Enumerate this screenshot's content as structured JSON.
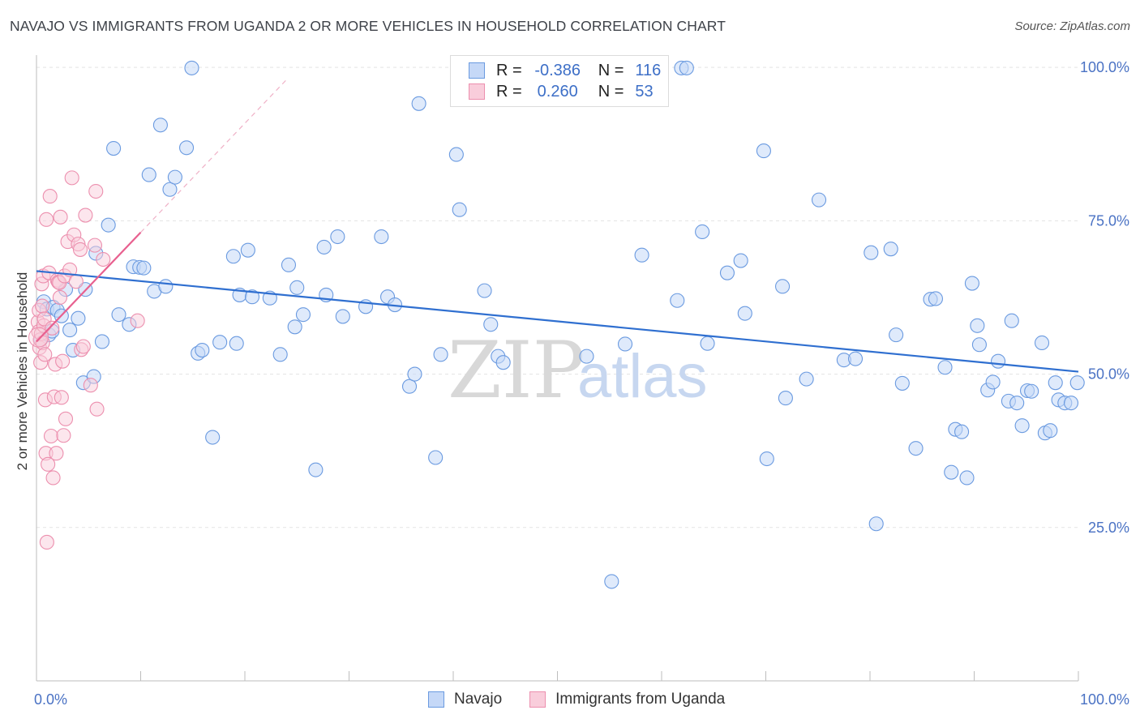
{
  "title": "NAVAJO VS IMMIGRANTS FROM UGANDA 2 OR MORE VEHICLES IN HOUSEHOLD CORRELATION CHART",
  "source": "Source: ZipAtlas.com",
  "watermark": {
    "zip": "ZIP",
    "atlas": "atlas"
  },
  "colors": {
    "navajo_fill": "#c5d8f7",
    "navajo_stroke": "#6a9ae0",
    "navajo_line": "#2f6fd0",
    "uganda_fill": "#f9cddb",
    "uganda_stroke": "#ec8fae",
    "uganda_line": "#e8608f",
    "grid": "#e3e3e3",
    "tick_label": "#4a72c4"
  },
  "legend": {
    "rows": [
      {
        "r_label": "R =",
        "r_value": "-0.386",
        "n_label": "N =",
        "n_value": "116"
      },
      {
        "r_label": "R =",
        "r_value": "0.260",
        "n_label": "N =",
        "n_value": "53"
      }
    ]
  },
  "bottom_legend": {
    "navajo": "Navajo",
    "uganda": "Immigrants from Uganda"
  },
  "chart_data": {
    "type": "scatter",
    "title": "NAVAJO VS IMMIGRANTS FROM UGANDA 2 OR MORE VEHICLES IN HOUSEHOLD CORRELATION CHART",
    "xlabel": "",
    "ylabel": "2 or more Vehicles in Household",
    "xlim": [
      0,
      100
    ],
    "ylim": [
      0,
      102
    ],
    "y_ticks": [
      {
        "value": 100,
        "label": "100.0%"
      },
      {
        "value": 75,
        "label": "75.0%"
      },
      {
        "value": 50,
        "label": "50.0%"
      },
      {
        "value": 25,
        "label": "25.0%"
      }
    ],
    "x_tick_labels": [
      {
        "value": 0,
        "label": "0.0%"
      },
      {
        "value": 100,
        "label": "100.0%"
      }
    ],
    "x_minor_ticks": [
      0,
      10,
      20,
      30,
      40,
      50,
      60,
      70,
      80,
      90,
      100
    ],
    "series": [
      {
        "name": "Navajo",
        "R": -0.386,
        "N": 116,
        "trend": {
          "x": [
            0,
            100
          ],
          "y": [
            66.8,
            50.4
          ]
        },
        "points": [
          [
            0.4,
            55.6
          ],
          [
            0.7,
            61.8
          ],
          [
            1.0,
            60.6
          ],
          [
            1.2,
            56.4
          ],
          [
            1.5,
            57.0
          ],
          [
            1.6,
            60.9
          ],
          [
            2.0,
            60.4
          ],
          [
            2.4,
            59.5
          ],
          [
            2.8,
            63.8
          ],
          [
            3.2,
            57.2
          ],
          [
            3.5,
            53.9
          ],
          [
            4.0,
            59.1
          ],
          [
            4.5,
            48.6
          ],
          [
            4.7,
            63.8
          ],
          [
            5.5,
            49.6
          ],
          [
            5.7,
            69.7
          ],
          [
            6.3,
            55.3
          ],
          [
            6.9,
            74.3
          ],
          [
            7.4,
            86.8
          ],
          [
            7.9,
            59.7
          ],
          [
            8.9,
            58.1
          ],
          [
            9.3,
            67.5
          ],
          [
            9.9,
            67.4
          ],
          [
            10.3,
            67.3
          ],
          [
            10.8,
            82.5
          ],
          [
            11.3,
            63.5
          ],
          [
            11.9,
            90.6
          ],
          [
            12.4,
            64.3
          ],
          [
            12.8,
            80.1
          ],
          [
            13.3,
            82.1
          ],
          [
            14.4,
            86.9
          ],
          [
            14.9,
            99.9
          ],
          [
            15.5,
            53.4
          ],
          [
            15.9,
            53.9
          ],
          [
            16.9,
            39.7
          ],
          [
            17.6,
            55.2
          ],
          [
            18.9,
            69.2
          ],
          [
            19.2,
            55.0
          ],
          [
            19.5,
            62.9
          ],
          [
            20.3,
            70.2
          ],
          [
            20.7,
            62.6
          ],
          [
            22.4,
            62.4
          ],
          [
            23.4,
            53.2
          ],
          [
            24.2,
            67.8
          ],
          [
            24.8,
            57.7
          ],
          [
            25.0,
            64.1
          ],
          [
            25.6,
            59.7
          ],
          [
            26.8,
            34.4
          ],
          [
            27.6,
            70.7
          ],
          [
            27.8,
            62.9
          ],
          [
            28.9,
            72.4
          ],
          [
            29.4,
            59.4
          ],
          [
            31.6,
            61.0
          ],
          [
            33.1,
            72.4
          ],
          [
            33.7,
            62.6
          ],
          [
            34.4,
            61.3
          ],
          [
            35.8,
            48.0
          ],
          [
            36.3,
            50.0
          ],
          [
            36.7,
            94.1
          ],
          [
            38.3,
            36.4
          ],
          [
            38.8,
            53.2
          ],
          [
            40.3,
            85.8
          ],
          [
            40.6,
            76.8
          ],
          [
            43.0,
            63.6
          ],
          [
            43.6,
            58.1
          ],
          [
            44.3,
            52.9
          ],
          [
            44.8,
            51.9
          ],
          [
            52.8,
            52.9
          ],
          [
            55.2,
            16.2
          ],
          [
            56.5,
            54.9
          ],
          [
            58.1,
            69.4
          ],
          [
            61.5,
            62.0
          ],
          [
            61.9,
            99.9
          ],
          [
            62.4,
            99.9
          ],
          [
            63.9,
            73.2
          ],
          [
            64.4,
            55.0
          ],
          [
            66.3,
            66.5
          ],
          [
            67.6,
            68.5
          ],
          [
            68.0,
            59.9
          ],
          [
            69.8,
            86.4
          ],
          [
            70.1,
            36.2
          ],
          [
            71.6,
            64.3
          ],
          [
            71.9,
            46.1
          ],
          [
            73.9,
            49.2
          ],
          [
            75.1,
            78.4
          ],
          [
            77.5,
            52.3
          ],
          [
            78.6,
            52.5
          ],
          [
            80.1,
            69.8
          ],
          [
            80.6,
            25.6
          ],
          [
            82.0,
            70.4
          ],
          [
            82.5,
            56.4
          ],
          [
            83.1,
            48.5
          ],
          [
            84.4,
            37.9
          ],
          [
            85.8,
            62.2
          ],
          [
            86.3,
            62.3
          ],
          [
            87.2,
            51.1
          ],
          [
            87.8,
            34.0
          ],
          [
            88.2,
            41.0
          ],
          [
            88.8,
            40.6
          ],
          [
            89.3,
            33.1
          ],
          [
            89.8,
            64.8
          ],
          [
            90.3,
            57.9
          ],
          [
            90.5,
            54.8
          ],
          [
            91.3,
            47.4
          ],
          [
            91.8,
            48.7
          ],
          [
            92.3,
            52.1
          ],
          [
            93.3,
            45.6
          ],
          [
            93.6,
            58.7
          ],
          [
            94.1,
            45.3
          ],
          [
            94.6,
            41.6
          ],
          [
            95.1,
            47.3
          ],
          [
            95.5,
            47.2
          ],
          [
            96.5,
            55.1
          ],
          [
            96.8,
            40.4
          ],
          [
            97.3,
            40.8
          ],
          [
            97.8,
            48.6
          ],
          [
            98.1,
            45.8
          ],
          [
            98.7,
            45.3
          ],
          [
            99.3,
            45.3
          ],
          [
            99.9,
            48.6
          ]
        ]
      },
      {
        "name": "Immigrants from Uganda",
        "R": 0.26,
        "N": 53,
        "trend": {
          "x": [
            0,
            10
          ],
          "y": [
            55.3,
            73.1
          ]
        },
        "trend_extended": {
          "x": [
            10,
            24
          ],
          "y": [
            73.1,
            98.0
          ]
        },
        "points": [
          [
            0.15,
            58.5
          ],
          [
            0.2,
            56.9
          ],
          [
            0.25,
            60.4
          ],
          [
            0.3,
            54.3
          ],
          [
            0.35,
            55.6
          ],
          [
            0.4,
            51.9
          ],
          [
            0.45,
            56.6
          ],
          [
            0.5,
            64.7
          ],
          [
            0.55,
            61.1
          ],
          [
            0.6,
            55.1
          ],
          [
            0.65,
            66.0
          ],
          [
            0.7,
            57.9
          ],
          [
            0.75,
            59.0
          ],
          [
            0.8,
            53.2
          ],
          [
            0.85,
            45.8
          ],
          [
            0.9,
            37.1
          ],
          [
            0.95,
            75.2
          ],
          [
            1.0,
            22.6
          ],
          [
            1.1,
            35.3
          ],
          [
            1.2,
            66.5
          ],
          [
            1.3,
            79.0
          ],
          [
            1.4,
            39.9
          ],
          [
            1.5,
            57.5
          ],
          [
            1.6,
            33.1
          ],
          [
            1.7,
            46.3
          ],
          [
            1.8,
            51.6
          ],
          [
            1.9,
            37.1
          ],
          [
            2.0,
            65.3
          ],
          [
            2.1,
            65.0
          ],
          [
            2.2,
            64.9
          ],
          [
            2.25,
            62.5
          ],
          [
            2.3,
            75.6
          ],
          [
            2.4,
            46.2
          ],
          [
            2.5,
            52.1
          ],
          [
            2.6,
            40.0
          ],
          [
            2.7,
            66.0
          ],
          [
            2.8,
            42.7
          ],
          [
            3.0,
            71.6
          ],
          [
            3.2,
            67.0
          ],
          [
            3.4,
            82.0
          ],
          [
            3.6,
            72.7
          ],
          [
            3.8,
            65.1
          ],
          [
            4.0,
            71.2
          ],
          [
            4.2,
            70.3
          ],
          [
            4.3,
            54.0
          ],
          [
            4.5,
            54.5
          ],
          [
            4.7,
            75.9
          ],
          [
            5.2,
            48.2
          ],
          [
            5.6,
            71.0
          ],
          [
            5.8,
            44.3
          ],
          [
            5.7,
            79.8
          ],
          [
            6.4,
            68.7
          ],
          [
            9.7,
            58.7
          ]
        ]
      }
    ]
  }
}
